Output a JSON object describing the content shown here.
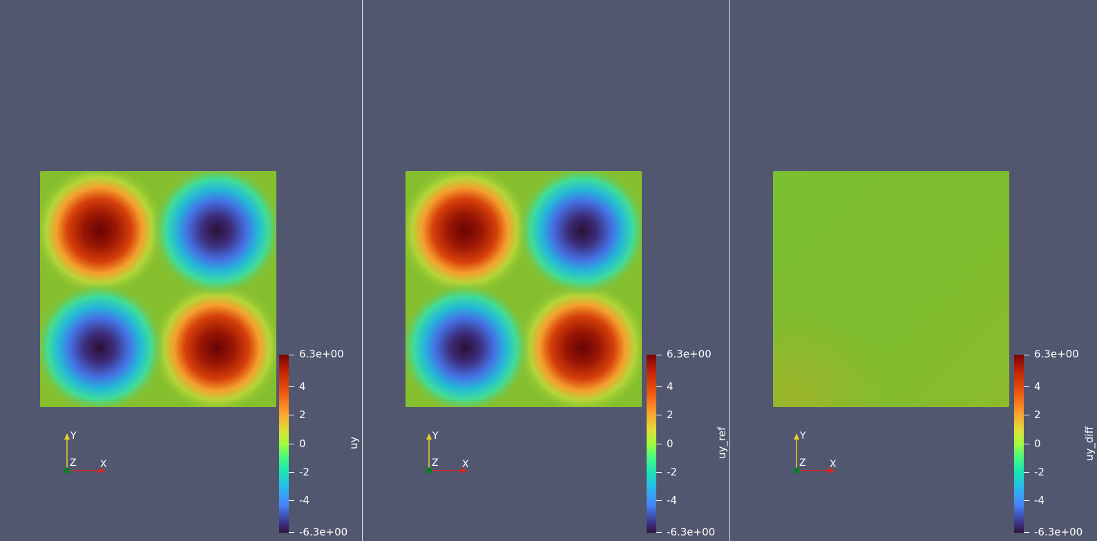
{
  "views": [
    {
      "scalar_title": "uy",
      "field": "full",
      "ticks": [
        "6.3e+00",
        "4",
        "2",
        "0",
        "-2",
        "-4",
        "-6.3e+00"
      ]
    },
    {
      "scalar_title": "uy_ref",
      "field": "full",
      "ticks": [
        "6.3e+00",
        "4",
        "2",
        "0",
        "-2",
        "-4",
        "-6.3e+00"
      ]
    },
    {
      "scalar_title": "uy_diff",
      "field": "flat",
      "ticks": [
        "6.3e+00",
        "4",
        "2",
        "0",
        "-2",
        "-4",
        "-6.3e+00"
      ]
    }
  ],
  "axes": {
    "y_label": "Y",
    "z_label": "Z",
    "x_label": "X"
  },
  "colors": {
    "background": "#525770",
    "zero_green": "#86bf2e",
    "max_red": "#7a0403",
    "min_purple": "#30123b",
    "axis_x": "#e0261b",
    "axis_y": "#e6d325",
    "axis_z": "#0a7a2a"
  }
}
